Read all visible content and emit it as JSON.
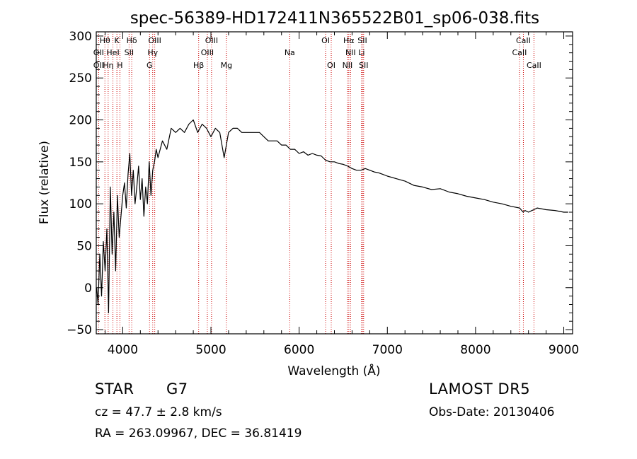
{
  "chart_data": {
    "type": "line",
    "title": "spec-56389-HD172411N365522B01_sp06-038.fits",
    "xlabel": "Wavelength (Å)",
    "ylabel": "Flux (relative)",
    "xlim": [
      3700,
      9100
    ],
    "ylim": [
      -55,
      305
    ],
    "x_ticks": [
      4000,
      5000,
      6000,
      7000,
      8000,
      9000
    ],
    "x_tick_labels": [
      "4000",
      "5000",
      "6000",
      "7000",
      "8000",
      "9000"
    ],
    "y_ticks": [
      -50,
      0,
      50,
      100,
      150,
      200,
      250,
      300
    ],
    "y_tick_labels": [
      "−50",
      "0",
      "50",
      "100",
      "150",
      "200",
      "250",
      "300"
    ],
    "grid": false,
    "series": [
      {
        "x": [
          3705,
          3720,
          3740,
          3760,
          3780,
          3800,
          3820,
          3840,
          3860,
          3880,
          3900,
          3920,
          3940,
          3960,
          3980,
          4000,
          4020,
          4040,
          4060,
          4080,
          4100,
          4120,
          4140,
          4160,
          4180,
          4200,
          4220,
          4240,
          4260,
          4280,
          4300,
          4320,
          4340,
          4360,
          4380,
          4400,
          4450,
          4500,
          4550,
          4600,
          4650,
          4700,
          4750,
          4800,
          4850,
          4900,
          4950,
          5000,
          5050,
          5100,
          5150,
          5200,
          5250,
          5300,
          5350,
          5400,
          5450,
          5500,
          5550,
          5600,
          5650,
          5700,
          5750,
          5800,
          5850,
          5900,
          5950,
          6000,
          6050,
          6100,
          6150,
          6200,
          6250,
          6300,
          6350,
          6400,
          6450,
          6500,
          6550,
          6600,
          6650,
          6700,
          6750,
          6800,
          6850,
          6900,
          6950,
          7000,
          7100,
          7200,
          7300,
          7400,
          7500,
          7600,
          7700,
          7800,
          7900,
          8000,
          8100,
          8200,
          8300,
          8400,
          8500,
          8540,
          8560,
          8600,
          8640,
          8660,
          8700,
          8800,
          8900,
          9000,
          9050
        ],
        "y": [
          0,
          -20,
          40,
          -10,
          55,
          20,
          70,
          -30,
          120,
          40,
          90,
          20,
          110,
          60,
          85,
          110,
          125,
          95,
          135,
          160,
          110,
          140,
          100,
          120,
          145,
          105,
          130,
          85,
          120,
          100,
          150,
          110,
          140,
          150,
          165,
          155,
          175,
          165,
          190,
          185,
          190,
          185,
          195,
          200,
          185,
          195,
          190,
          180,
          190,
          185,
          155,
          185,
          190,
          190,
          185,
          185,
          185,
          185,
          185,
          180,
          175,
          175,
          175,
          170,
          170,
          165,
          165,
          160,
          162,
          158,
          160,
          158,
          157,
          152,
          150,
          150,
          148,
          147,
          145,
          142,
          140,
          140,
          142,
          140,
          138,
          137,
          135,
          133,
          130,
          127,
          122,
          120,
          117,
          118,
          114,
          112,
          109,
          107,
          105,
          102,
          100,
          97,
          95,
          90,
          92,
          90,
          92,
          93,
          95,
          93,
          92,
          90,
          90
        ]
      }
    ],
    "lines": [
      {
        "label": "Hθ",
        "x": 3798,
        "row": 0
      },
      {
        "label": "K",
        "x": 3934,
        "row": 0
      },
      {
        "label": "Hδ",
        "x": 4102,
        "row": 0
      },
      {
        "label": "OIII",
        "x": 4363,
        "row": 0
      },
      {
        "label": "OIII",
        "x": 5007,
        "row": 0
      },
      {
        "label": "OI",
        "x": 6300,
        "row": 0
      },
      {
        "label": "Hα",
        "x": 6563,
        "row": 0
      },
      {
        "label": "SII",
        "x": 6717,
        "row": 0
      },
      {
        "label": "CaII",
        "x": 8542,
        "row": 0
      },
      {
        "label": "OII",
        "x": 3727,
        "row": 1
      },
      {
        "label": "HeI",
        "x": 3889,
        "row": 1
      },
      {
        "label": "SII",
        "x": 4072,
        "row": 1
      },
      {
        "label": "Hγ",
        "x": 4340,
        "row": 1
      },
      {
        "label": "OIII",
        "x": 4959,
        "row": 1
      },
      {
        "label": "Na",
        "x": 5893,
        "row": 1
      },
      {
        "label": "NII",
        "x": 6583,
        "row": 1
      },
      {
        "label": "Li",
        "x": 6708,
        "row": 1
      },
      {
        "label": "CaII",
        "x": 8498,
        "row": 1
      },
      {
        "label": "OII",
        "x": 3727,
        "row": 2
      },
      {
        "label": "Hη",
        "x": 3835,
        "row": 2
      },
      {
        "label": "H",
        "x": 3968,
        "row": 2
      },
      {
        "label": "G",
        "x": 4304,
        "row": 2
      },
      {
        "label": "Hβ",
        "x": 4861,
        "row": 2
      },
      {
        "label": "Mg",
        "x": 5175,
        "row": 2
      },
      {
        "label": "OI",
        "x": 6364,
        "row": 2
      },
      {
        "label": "NII",
        "x": 6548,
        "row": 2
      },
      {
        "label": "SII",
        "x": 6731,
        "row": 2
      },
      {
        "label": "CaII",
        "x": 8662,
        "row": 2
      }
    ]
  },
  "footer": {
    "object": "STAR",
    "subclass": "G7",
    "redshift": "cz = 47.7 ± 2.8 km/s",
    "coords": "RA = 263.09967, DEC =  36.81419",
    "survey": "LAMOST DR5",
    "obs_date": "Obs-Date: 20130406"
  }
}
